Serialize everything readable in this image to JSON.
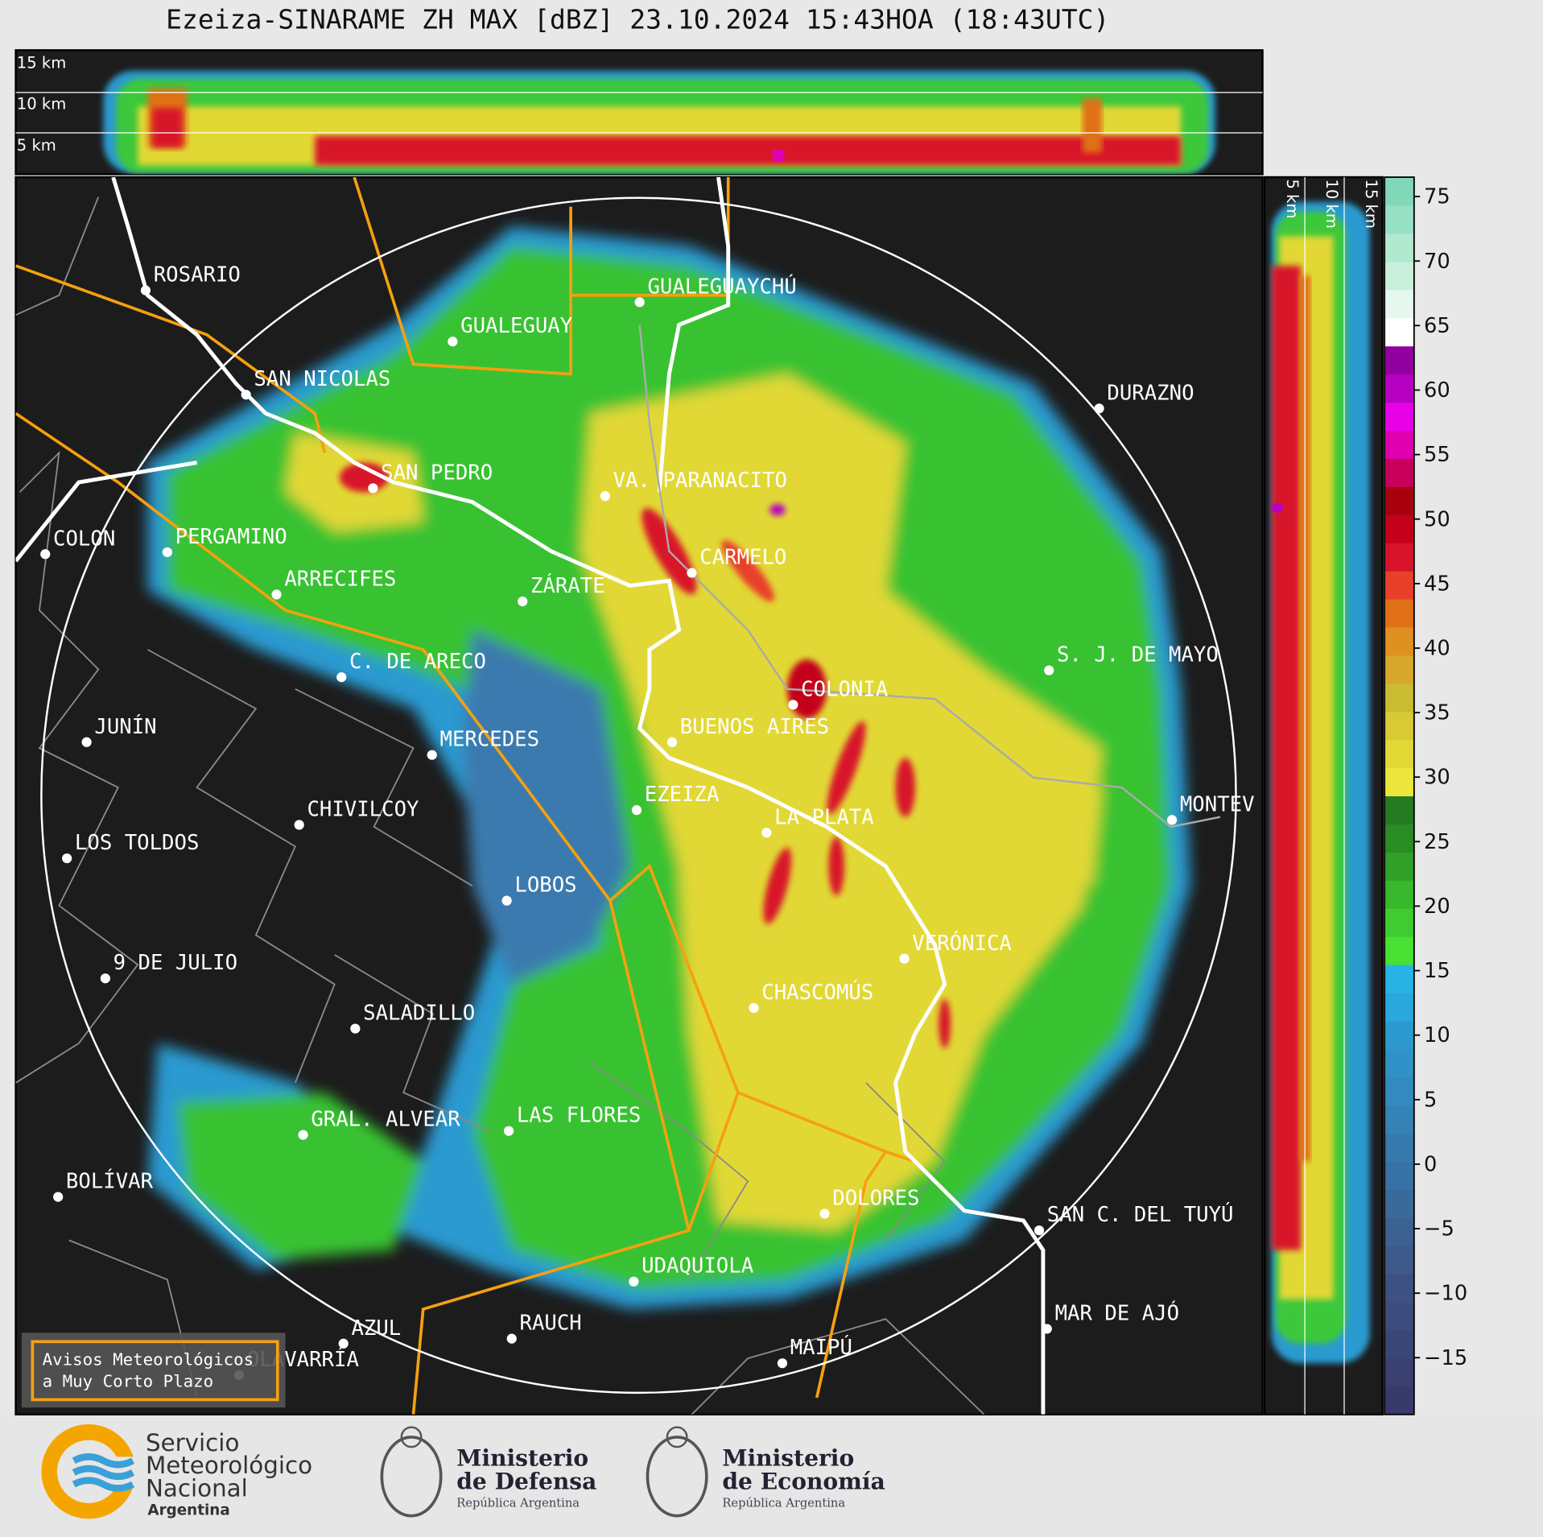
{
  "header": {
    "title": "Ezeiza-SINARAME ZH MAX [dBZ] 23.10.2024 15:43HOA (18:43UTC)"
  },
  "top_panel": {
    "height_labels": [
      "15 km",
      "10 km",
      "5 km"
    ]
  },
  "side_panel": {
    "height_labels": [
      "5 km",
      "10 km",
      "15 km"
    ]
  },
  "map": {
    "cities": [
      "ROSARIO",
      "GUALEGUAYCHÚ",
      "GUALEGUAY",
      "SAN NICOLAS",
      "DURAZNO",
      "SAN PEDRO",
      "VA. PARANACITO",
      "COLON",
      "PERGAMINO",
      "CARMELO",
      "ARRECIFES",
      "ZÁRATE",
      "S. J. DE MAYO",
      "C. DE ARECO",
      "COLONIA",
      "JUNÍN",
      "BUENOS AIRES",
      "MERCEDES",
      "EZEIZA",
      "MONTEV",
      "CHIVILCOY",
      "LA PLATA",
      "LOS TOLDOS",
      "LOBOS",
      "VERÓNICA",
      "9 DE JULIO",
      "CHASCOMÚS",
      "SALADILLO",
      "GRAL. ALVEAR",
      "LAS FLORES",
      "BOLÍVAR",
      "DOLORES",
      "SAN C. DEL TUYÚ",
      "UDAQUIOLA",
      "RAUCH",
      "MAR DE AJÓ",
      "AZUL",
      "OLAVARRÍA",
      "MAIPÚ"
    ]
  },
  "colorbar": {
    "range": [
      -19.4,
      76.5
    ],
    "ticks": [
      {
        "value": -15,
        "label": "−15"
      },
      {
        "value": -10,
        "label": "−10"
      },
      {
        "value": -5,
        "label": "−5"
      },
      0,
      5,
      10,
      15,
      20,
      25,
      30,
      35,
      40,
      45,
      50,
      55,
      60,
      65,
      70,
      75
    ],
    "colors": [
      "#383a6a",
      "#3a4070",
      "#3b4676",
      "#3c4c7c",
      "#3d5282",
      "#3d5a8a",
      "#3c6292",
      "#3a6a9a",
      "#3872a4",
      "#367aae",
      "#3482b6",
      "#328abe",
      "#3092c6",
      "#2c9ace",
      "#28a8dc",
      "#27b4e4",
      "#48e032",
      "#40cc30",
      "#38b82c",
      "#30a028",
      "#2a8c24",
      "#247a20",
      "#ece63a",
      "#e2d836",
      "#d8ca34",
      "#cabc30",
      "#d8a82c",
      "#de9020",
      "#e07018",
      "#e8402a",
      "#d8142a",
      "#c4001a",
      "#a8000e",
      "#c8005c",
      "#e000b0",
      "#e800e8",
      "#b800c0",
      "#9000a0",
      "#ffffff",
      "#e6f8ee",
      "#c8f0dc",
      "#b0e8d0",
      "#98e0c4",
      "#80d8b8"
    ]
  },
  "warning_button": {
    "lines": [
      "Avisos Meteorológicos",
      "a Muy Corto Plazo"
    ]
  },
  "footer": {
    "logos": [
      {
        "lines": [
          "Servicio",
          "Meteorológico",
          "Nacional"
        ],
        "subtitle": "Argentina"
      },
      {
        "lines": [
          "Ministerio",
          "de Defensa"
        ],
        "subtitle": "República Argentina"
      },
      {
        "lines": [
          "Ministerio",
          "de Economía"
        ],
        "subtitle": "República Argentina"
      }
    ]
  }
}
